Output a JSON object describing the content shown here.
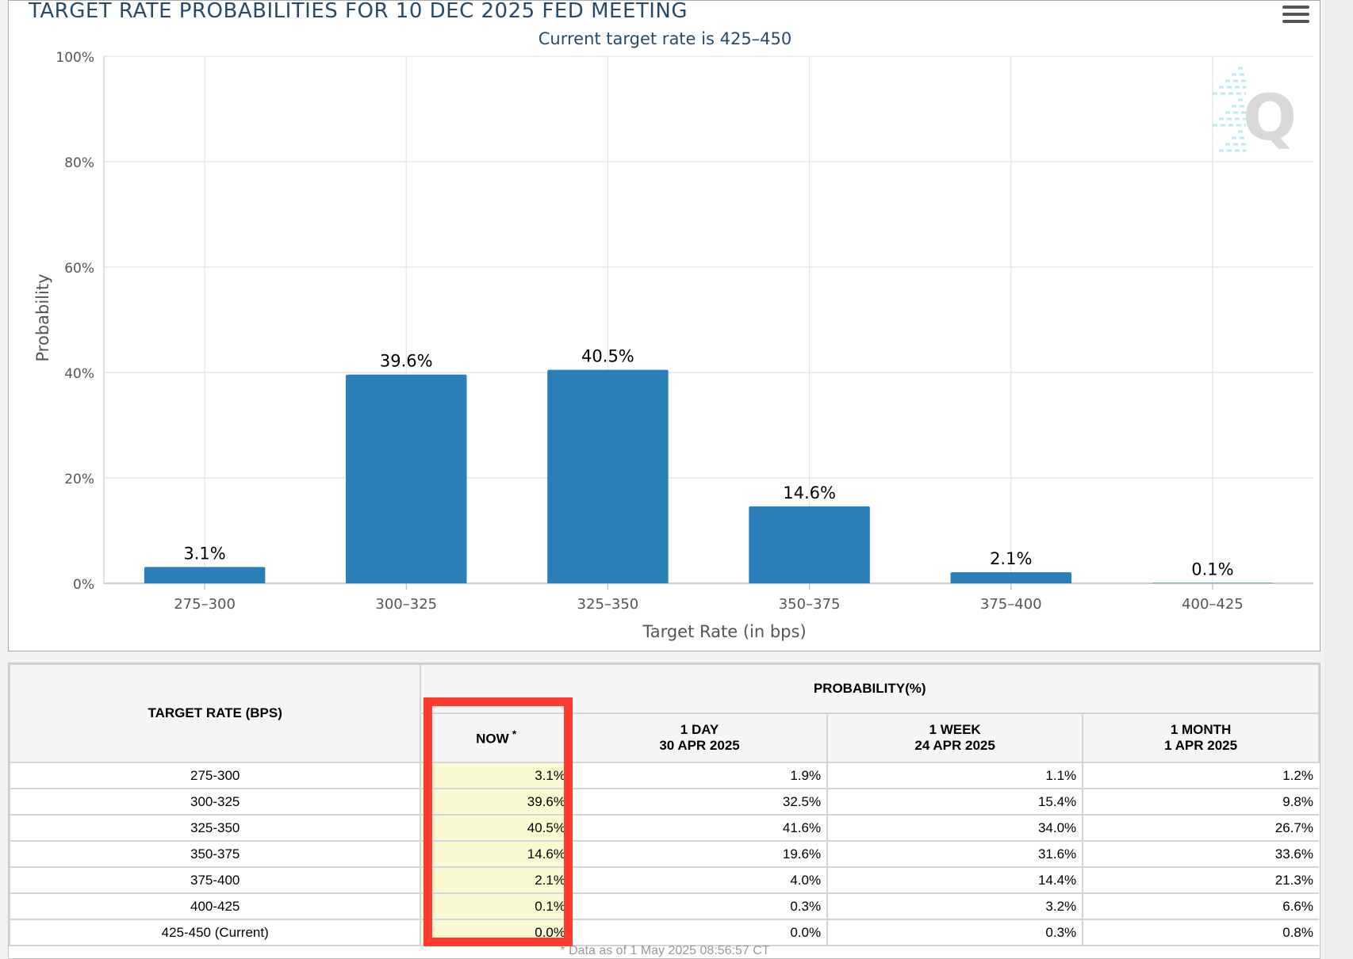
{
  "chart": {
    "title": "TARGET RATE PROBABILITIES FOR 10 DEC 2025 FED MEETING",
    "subtitle": "Current target rate is 425–450",
    "watermark": "Q"
  },
  "chart_data": {
    "type": "bar",
    "categories": [
      "275–300",
      "300–325",
      "325–350",
      "350–375",
      "375–400",
      "400–425"
    ],
    "values": [
      3.1,
      39.6,
      40.5,
      14.6,
      2.1,
      0.1
    ],
    "data_labels": [
      "3.1%",
      "39.6%",
      "40.5%",
      "14.6%",
      "2.1%",
      "0.1%"
    ],
    "title": "TARGET RATE PROBABILITIES FOR 10 DEC 2025 FED MEETING",
    "subtitle": "Current target rate is 425–450",
    "xlabel": "Target Rate (in bps)",
    "ylabel": "Probability",
    "ylim": [
      0,
      100
    ],
    "yticks": [
      "0%",
      "20%",
      "40%",
      "60%",
      "80%",
      "100%"
    ],
    "bar_color": "#2b7fb9",
    "grid": true,
    "legend": "none"
  },
  "table": {
    "header_rate": "TARGET RATE (BPS)",
    "header_prob": "PROBABILITY(%)",
    "columns": [
      {
        "line1": "NOW",
        "line2": "",
        "marker": "*"
      },
      {
        "line1": "1 DAY",
        "line2": "30 APR 2025",
        "marker": ""
      },
      {
        "line1": "1 WEEK",
        "line2": "24 APR 2025",
        "marker": ""
      },
      {
        "line1": "1 MONTH",
        "line2": "1 APR 2025",
        "marker": ""
      }
    ],
    "rows": [
      {
        "rate": "275-300",
        "values": [
          "3.1%",
          "1.9%",
          "1.1%",
          "1.2%"
        ]
      },
      {
        "rate": "300-325",
        "values": [
          "39.6%",
          "32.5%",
          "15.4%",
          "9.8%"
        ]
      },
      {
        "rate": "325-350",
        "values": [
          "40.5%",
          "41.6%",
          "34.0%",
          "26.7%"
        ]
      },
      {
        "rate": "350-375",
        "values": [
          "14.6%",
          "19.6%",
          "31.6%",
          "33.6%"
        ]
      },
      {
        "rate": "375-400",
        "values": [
          "2.1%",
          "4.0%",
          "14.4%",
          "21.3%"
        ]
      },
      {
        "rate": "400-425",
        "values": [
          "0.1%",
          "0.3%",
          "3.2%",
          "6.6%"
        ]
      },
      {
        "rate": "425-450 (Current)",
        "values": [
          "0.0%",
          "0.0%",
          "0.3%",
          "0.8%"
        ]
      }
    ],
    "footnote": "* Data as of 1 May 2025 08:56:57 CT"
  },
  "colors": {
    "bar": "#2b7fb9",
    "title": "#274b6d",
    "highlight_border": "#ff3b2f",
    "now_column_bg": "#fafad2"
  }
}
